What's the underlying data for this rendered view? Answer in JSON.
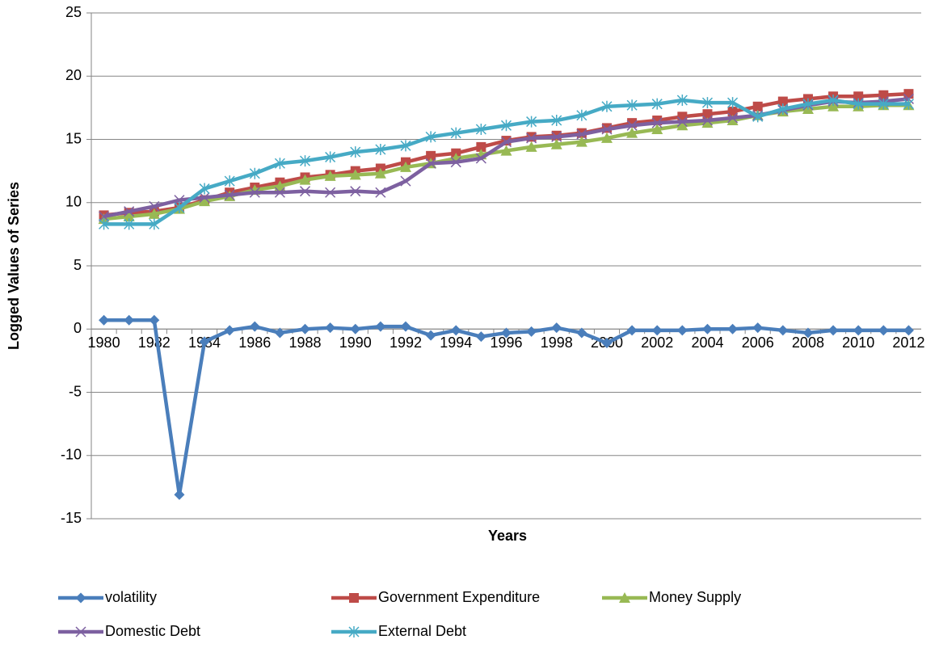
{
  "chart_data": {
    "type": "line",
    "x_label": "Years",
    "y_label": "Logged Values of Series",
    "categories": [
      1980,
      null,
      1982,
      null,
      1984,
      null,
      1986,
      null,
      1988,
      null,
      1990,
      null,
      1992,
      null,
      1994,
      null,
      1996,
      null,
      1998,
      null,
      2000,
      null,
      2002,
      null,
      2004,
      null,
      2006,
      null,
      2008,
      null,
      2010,
      null,
      2012
    ],
    "ylim": [
      -15,
      25
    ],
    "yticks": [
      -15,
      -10,
      -5,
      0,
      5,
      10,
      15,
      20,
      25
    ],
    "grid": true,
    "series": [
      {
        "name": "volatility",
        "color": "#4a7ebb",
        "marker": "diamond",
        "values": [
          0.7,
          0.7,
          0.7,
          -13.1,
          -1.0,
          -0.1,
          0.2,
          -0.3,
          0,
          0.1,
          0,
          0.2,
          0.2,
          -0.5,
          -0.1,
          -0.6,
          -0.3,
          -0.2,
          0.1,
          -0.3,
          -1.1,
          -0.1,
          -0.1,
          -0.1,
          0,
          0,
          0.1,
          -0.1,
          -0.3,
          -0.1,
          -0.1,
          -0.1,
          -0.1
        ]
      },
      {
        "name": "Government Expenditure",
        "color": "#be4b48",
        "marker": "square",
        "values": [
          9.0,
          9.2,
          9.3,
          9.6,
          10.2,
          10.8,
          11.2,
          11.6,
          12.0,
          12.2,
          12.5,
          12.7,
          13.2,
          13.7,
          13.9,
          14.4,
          14.9,
          15.2,
          15.3,
          15.5,
          15.9,
          16.3,
          16.5,
          16.8,
          17.0,
          17.2,
          17.6,
          18.0,
          18.2,
          18.4,
          18.4,
          18.5,
          18.6
        ]
      },
      {
        "name": "Money Supply",
        "color": "#98b954",
        "marker": "triangle",
        "values": [
          8.7,
          8.9,
          9.1,
          9.5,
          10.1,
          10.5,
          11.0,
          11.3,
          11.8,
          12.1,
          12.2,
          12.3,
          12.8,
          13.1,
          13.5,
          13.8,
          14.1,
          14.4,
          14.6,
          14.8,
          15.1,
          15.5,
          15.8,
          16.1,
          16.3,
          16.5,
          16.9,
          17.2,
          17.4,
          17.6,
          17.6,
          17.7,
          17.7
        ]
      },
      {
        "name": "Domestic Debt",
        "color": "#7d60a0",
        "marker": "x",
        "values": [
          8.9,
          9.3,
          9.7,
          10.2,
          10.4,
          10.6,
          10.8,
          10.8,
          10.9,
          10.8,
          10.9,
          10.8,
          11.7,
          13.1,
          13.2,
          13.5,
          14.8,
          15.1,
          15.2,
          15.4,
          15.8,
          16.1,
          16.3,
          16.4,
          16.5,
          16.7,
          16.9,
          17.3,
          17.7,
          18.0,
          17.9,
          18.0,
          18.2
        ]
      },
      {
        "name": "External Debt",
        "color": "#46aac5",
        "marker": "star",
        "values": [
          8.3,
          8.3,
          8.3,
          9.6,
          11.1,
          11.7,
          12.3,
          13.1,
          13.3,
          13.6,
          14.0,
          14.2,
          14.5,
          15.2,
          15.5,
          15.8,
          16.1,
          16.4,
          16.5,
          16.9,
          17.6,
          17.7,
          17.8,
          18.1,
          17.9,
          17.9,
          16.8,
          17.4,
          17.8,
          18.1,
          17.8,
          17.8,
          17.8
        ]
      }
    ]
  }
}
